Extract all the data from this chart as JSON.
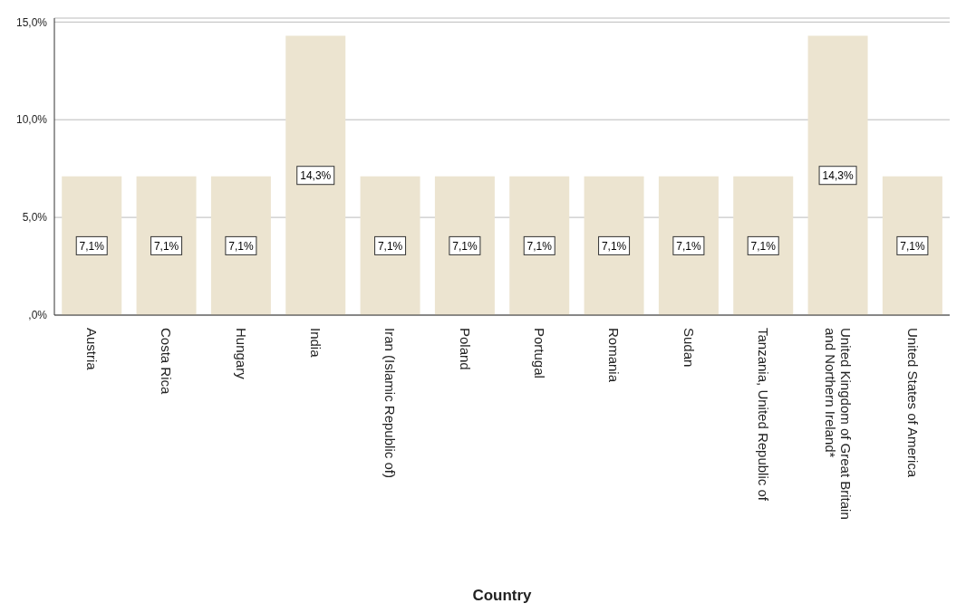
{
  "chart_data": {
    "type": "bar",
    "xlabel": "Country",
    "categories": [
      "Austria",
      "Costa Rica",
      "Hungary",
      "India",
      "Iran (Islamic Republic of)",
      "Poland",
      "Portugal",
      "Romania",
      "Sudan",
      "Tanzania, United Republic of",
      "United Kingdom of Great Britain and Northern Ireland*",
      "United States of America"
    ],
    "values": [
      7.1,
      7.1,
      7.1,
      14.3,
      7.1,
      7.1,
      7.1,
      7.1,
      7.1,
      7.1,
      14.3,
      7.1
    ],
    "value_labels": [
      "7,1%",
      "7,1%",
      "7,1%",
      "14,3%",
      "7,1%",
      "7,1%",
      "7,1%",
      "7,1%",
      "7,1%",
      "7,1%",
      "14,3%",
      "7,1%"
    ],
    "color": "#ece4d0",
    "ylim": [
      0,
      15.2
    ],
    "yticks": [
      {
        "value": 0,
        "label": ",0%"
      },
      {
        "value": 5,
        "label": "5,0%"
      },
      {
        "value": 10,
        "label": "10,0%"
      },
      {
        "value": 15,
        "label": "15,0%"
      }
    ],
    "grid": "y"
  }
}
